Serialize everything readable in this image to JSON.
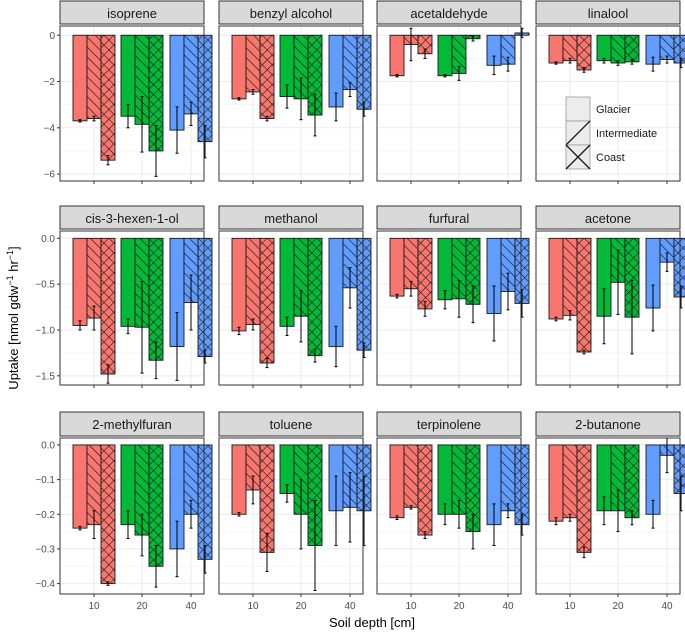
{
  "chart_data": {
    "type": "bar",
    "xlabel": "Soil depth [cm]",
    "ylabel": "Uptake [nmol gdw",
    "ylabel_exp1": "−1",
    "ylabel_mid": " hr",
    "ylabel_exp2": "−1",
    "ylabel_end": "]",
    "depths": [
      "10",
      "20",
      "40"
    ],
    "depth_colors": [
      "#F8766D",
      "#00BA38",
      "#619CFF"
    ],
    "sites": [
      "Glacier",
      "Intermediate",
      "Coast"
    ],
    "legend_position": "inside-top-right",
    "panels": [
      {
        "name": "isoprene",
        "ylim": [
          -6.3,
          0.4
        ],
        "yticks": [
          0,
          -2,
          -4,
          -6
        ],
        "values": [
          [
            -3.7,
            -3.6,
            -5.4
          ],
          [
            -3.5,
            -3.85,
            -5.0
          ],
          [
            -4.1,
            -3.4,
            -4.6
          ]
        ],
        "errors": [
          [
            0.05,
            0.1,
            0.2
          ],
          [
            0.5,
            1.2,
            1.1
          ],
          [
            1.0,
            0.5,
            0.7
          ]
        ]
      },
      {
        "name": "benzyl alcohol",
        "ylim": [
          -6.3,
          0.4
        ],
        "yticks": [
          0,
          -2,
          -4,
          -6
        ],
        "values": [
          [
            -2.75,
            -2.45,
            -3.6
          ],
          [
            -2.65,
            -2.75,
            -3.45
          ],
          [
            -3.1,
            -2.35,
            -3.2
          ]
        ],
        "errors": [
          [
            0.05,
            0.1,
            0.1
          ],
          [
            0.5,
            0.9,
            0.9
          ],
          [
            0.6,
            0.3,
            0.3
          ]
        ]
      },
      {
        "name": "acetaldehyde",
        "ylim": [
          -6.3,
          0.4
        ],
        "yticks": [
          0,
          -2,
          -4,
          -6
        ],
        "values": [
          [
            -1.75,
            -0.4,
            -0.8
          ],
          [
            -1.75,
            -1.65,
            -0.15
          ],
          [
            -1.3,
            -1.25,
            0.1
          ]
        ],
        "errors": [
          [
            0.05,
            0.7,
            0.2
          ],
          [
            0.05,
            0.3,
            0.1
          ],
          [
            0.4,
            0.3,
            0.2
          ]
        ]
      },
      {
        "name": "linalool",
        "ylim": [
          -6.3,
          0.4
        ],
        "yticks": [
          0,
          -2,
          -4,
          -6
        ],
        "values": [
          [
            -1.2,
            -1.1,
            -1.5
          ],
          [
            -1.1,
            -1.2,
            -1.15
          ],
          [
            -1.25,
            -1.05,
            -1.2
          ]
        ],
        "errors": [
          [
            0.05,
            0.1,
            0.1
          ],
          [
            0.1,
            0.1,
            0.1
          ],
          [
            0.3,
            0.15,
            0.2
          ]
        ]
      },
      {
        "name": "cis-3-hexen-1-ol",
        "ylim": [
          -1.6,
          0.08
        ],
        "yticks": [
          0.0,
          -0.5,
          -1.0,
          -1.5
        ],
        "values": [
          [
            -0.95,
            -0.87,
            -1.48
          ],
          [
            -0.96,
            -0.97,
            -1.33
          ],
          [
            -1.18,
            -0.7,
            -1.29
          ]
        ],
        "errors": [
          [
            0.05,
            0.13,
            0.1
          ],
          [
            0.08,
            0.5,
            0.2
          ],
          [
            0.37,
            0.3,
            0.07
          ]
        ]
      },
      {
        "name": "methanol",
        "ylim": [
          -1.6,
          0.08
        ],
        "yticks": [
          0.0,
          -0.5,
          -1.0,
          -1.5
        ],
        "values": [
          [
            -1.01,
            -0.94,
            -1.36
          ],
          [
            -0.96,
            -0.85,
            -1.28
          ],
          [
            -1.18,
            -0.54,
            -1.22
          ]
        ],
        "errors": [
          [
            0.04,
            0.06,
            0.05
          ],
          [
            0.1,
            0.28,
            0.07
          ],
          [
            0.22,
            0.22,
            0.08
          ]
        ]
      },
      {
        "name": "furfural",
        "ylim": [
          -1.6,
          0.08
        ],
        "yticks": [
          0.0,
          -0.5,
          -1.0,
          -1.5
        ],
        "values": [
          [
            -0.63,
            -0.55,
            -0.77
          ],
          [
            -0.67,
            -0.66,
            -0.72
          ],
          [
            -0.82,
            -0.58,
            -0.71
          ]
        ],
        "errors": [
          [
            0.02,
            0.08,
            0.08
          ],
          [
            0.1,
            0.2,
            0.2
          ],
          [
            0.3,
            0.2,
            0.15
          ]
        ]
      },
      {
        "name": "acetone",
        "ylim": [
          -1.6,
          0.08
        ],
        "yticks": [
          0.0,
          -0.5,
          -1.0,
          -1.5
        ],
        "values": [
          [
            -0.88,
            -0.84,
            -1.24
          ],
          [
            -0.85,
            -0.48,
            -0.86
          ],
          [
            -0.76,
            -0.26,
            -0.64
          ]
        ],
        "errors": [
          [
            0.02,
            0.05,
            0.02
          ],
          [
            0.3,
            0.35,
            0.4
          ],
          [
            0.25,
            0.1,
            0.12
          ]
        ]
      },
      {
        "name": "2-methylfuran",
        "ylim": [
          -0.43,
          0.02
        ],
        "yticks": [
          0.0,
          -0.1,
          -0.2,
          -0.3,
          -0.4
        ],
        "values": [
          [
            -0.24,
            -0.23,
            -0.4
          ],
          [
            -0.23,
            -0.26,
            -0.35
          ],
          [
            -0.3,
            -0.2,
            -0.33
          ]
        ],
        "errors": [
          [
            0.005,
            0.04,
            0.005
          ],
          [
            0.04,
            0.06,
            0.06
          ],
          [
            0.08,
            0.04,
            0.04
          ]
        ]
      },
      {
        "name": "toluene",
        "ylim": [
          -0.43,
          0.02
        ],
        "yticks": [
          0.0,
          -0.1,
          -0.2,
          -0.3,
          -0.4
        ],
        "values": [
          [
            -0.2,
            -0.13,
            -0.31
          ],
          [
            -0.14,
            -0.2,
            -0.29
          ],
          [
            -0.19,
            -0.18,
            -0.19
          ]
        ],
        "errors": [
          [
            0.005,
            0.04,
            0.055
          ],
          [
            0.025,
            0.1,
            0.13
          ],
          [
            0.1,
            0.1,
            0.1
          ]
        ]
      },
      {
        "name": "terpinolene",
        "ylim": [
          -0.43,
          0.02
        ],
        "yticks": [
          0.0,
          -0.1,
          -0.2,
          -0.3,
          -0.4
        ],
        "values": [
          [
            -0.21,
            -0.18,
            -0.26
          ],
          [
            -0.2,
            -0.2,
            -0.25
          ],
          [
            -0.23,
            -0.19,
            -0.23
          ]
        ],
        "errors": [
          [
            0.005,
            0.005,
            0.01
          ],
          [
            0.03,
            0.04,
            0.05
          ],
          [
            0.06,
            0.02,
            0.03
          ]
        ]
      },
      {
        "name": "2-butanone",
        "ylim": [
          -0.43,
          0.02
        ],
        "yticks": [
          0.0,
          -0.1,
          -0.2,
          -0.3,
          -0.4
        ],
        "values": [
          [
            -0.22,
            -0.21,
            -0.31
          ],
          [
            -0.19,
            -0.19,
            -0.21
          ],
          [
            -0.2,
            -0.03,
            -0.14
          ]
        ],
        "errors": [
          [
            0.01,
            0.01,
            0.015
          ],
          [
            0.04,
            0.06,
            0.02
          ],
          [
            0.04,
            0.05,
            0.05
          ]
        ]
      }
    ]
  }
}
